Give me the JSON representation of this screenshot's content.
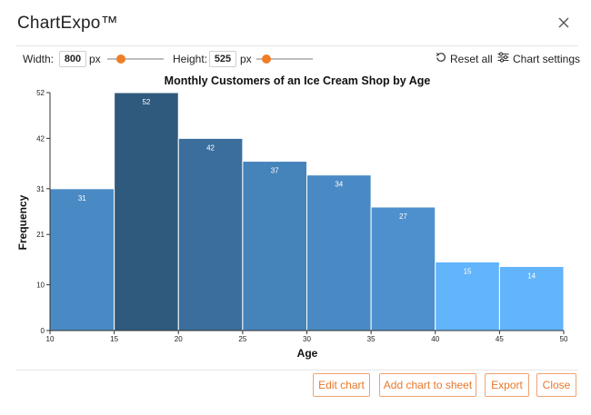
{
  "app": {
    "title": "ChartExpo™"
  },
  "toolbar": {
    "width_label": "Width:",
    "width_value": "800",
    "width_unit": "px",
    "width_slider_fraction": 0.24,
    "height_label": "Height:",
    "height_value": "525",
    "height_unit": "px",
    "height_slider_fraction": 0.17,
    "reset_label": "Reset all",
    "settings_label": "Chart settings"
  },
  "footer": {
    "edit_label": "Edit chart",
    "add_label": "Add chart to sheet",
    "export_label": "Export",
    "close_label": "Close"
  },
  "icons": {
    "close": "close-icon",
    "reset": "reset-icon",
    "settings": "sliders-icon"
  },
  "chart_data": {
    "type": "bar",
    "title": "Monthly Customers of an Ice Cream Shop by Age",
    "xlabel": "Age",
    "ylabel": "Frequency",
    "bins": [
      [
        10,
        15
      ],
      [
        15,
        20
      ],
      [
        20,
        25
      ],
      [
        25,
        30
      ],
      [
        30,
        35
      ],
      [
        35,
        40
      ],
      [
        40,
        45
      ],
      [
        45,
        50
      ]
    ],
    "values": [
      31,
      52,
      42,
      37,
      34,
      27,
      15,
      14
    ],
    "colors": [
      "#4a8ac4",
      "#2f5a7e",
      "#3b6e9c",
      "#4583bb",
      "#4a8ac4",
      "#4e90cd",
      "#62b4fb",
      "#62b4fb"
    ],
    "x_ticks": [
      10,
      15,
      20,
      25,
      30,
      35,
      40,
      45,
      50
    ],
    "y_ticks": [
      0,
      10,
      21,
      31,
      42,
      52
    ],
    "xlim": [
      10,
      50
    ],
    "ylim": [
      0,
      52
    ],
    "grid": false,
    "legend": "none"
  }
}
